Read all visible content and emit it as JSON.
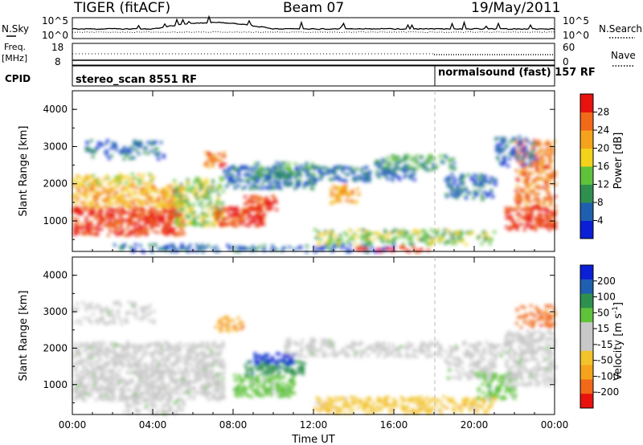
{
  "header": {
    "radar": "TIGER (fitACF)",
    "beam": "Beam 07",
    "date": "19/May/2011"
  },
  "top_panel": {
    "left_label": "N.Sky",
    "right_label": "N.Search",
    "left_ticks": [
      "10^5",
      "10^0"
    ],
    "right_ticks": [
      "10^5",
      "10^0"
    ]
  },
  "freq_panel": {
    "left_label_1": "Freq.",
    "left_label_2": "[MHz]",
    "left_ticks": [
      "18",
      "8"
    ],
    "right_label": "Nave",
    "right_ticks": [
      "60",
      "0"
    ]
  },
  "cpid_panel": {
    "label": "CPID",
    "mode_1": "stereo_scan 8551 RF",
    "mode_2": "normalsound (fast) 157 RF"
  },
  "colors": {
    "power_scale": [
      "#0a1fd6",
      "#1f5fb0",
      "#2f8f4f",
      "#5fc23a",
      "#f2d21a",
      "#f5a31c",
      "#f06a1a",
      "#e8120f"
    ],
    "velocity_scale": [
      "#e8120f",
      "#f06a1a",
      "#f5a31c",
      "#f2c32b",
      "#c8c8c8",
      "#c8c8c8",
      "#5fc23a",
      "#2f8f4f",
      "#1f5fb0",
      "#0a1fd6"
    ]
  },
  "chart_data": [
    {
      "type": "heatmap",
      "xlabel": "",
      "ylabel": "Slant Range [km]",
      "xlim": [
        0,
        24
      ],
      "ylim": [
        180,
        4500
      ],
      "x_ticks": [
        "00:00",
        "04:00",
        "08:00",
        "12:00",
        "16:00",
        "20:00",
        "00:00"
      ],
      "y_ticks": [
        "1000",
        "2000",
        "3000",
        "4000"
      ],
      "colorbar": {
        "label": "Power [dB]",
        "ticks": [
          "4",
          "8",
          "12",
          "16",
          "20",
          "24",
          "28"
        ],
        "range": [
          0,
          30
        ]
      }
    },
    {
      "type": "heatmap",
      "xlabel": "Time UT",
      "ylabel": "Slant Range [km]",
      "xlim": [
        0,
        24
      ],
      "ylim": [
        180,
        4500
      ],
      "x_ticks": [
        "00:00",
        "04:00",
        "08:00",
        "12:00",
        "16:00",
        "20:00",
        "00:00"
      ],
      "y_ticks": [
        "1000",
        "2000",
        "3000",
        "4000"
      ],
      "colorbar": {
        "label": "Velocity [m s^-1]",
        "ticks": [
          "200",
          "100",
          "50",
          "15",
          "-15",
          "-50",
          "-100",
          "-200"
        ],
        "range": [
          -250,
          250
        ]
      }
    }
  ]
}
